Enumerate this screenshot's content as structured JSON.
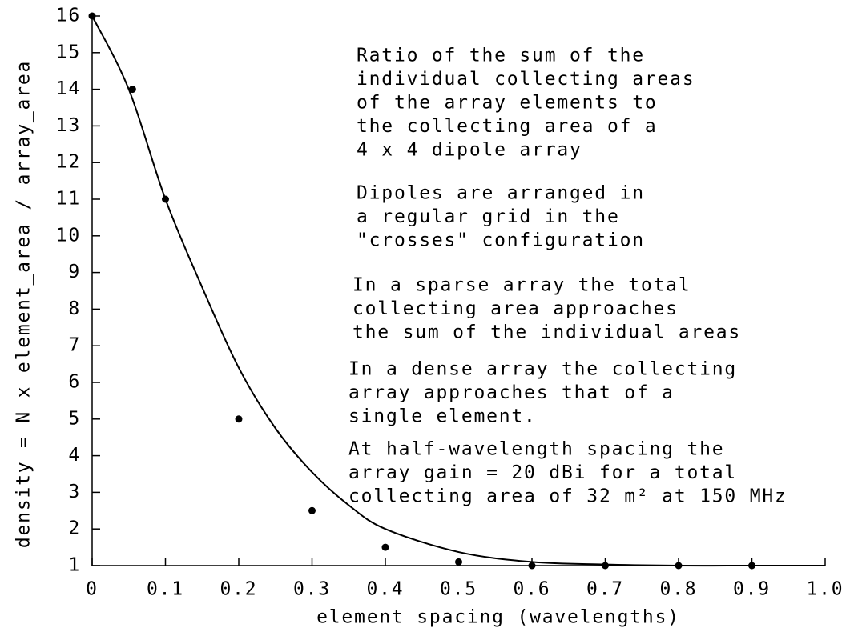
{
  "chart_data": {
    "type": "scatter",
    "x_label": "element spacing (wavelengths)",
    "y_label": "density = N x element_area / array_area",
    "x": [
      0,
      0.055,
      0.1,
      0.2,
      0.3,
      0.4,
      0.5,
      0.6,
      0.7,
      0.8,
      0.9
    ],
    "values": [
      16,
      14,
      11,
      5,
      2.5,
      1.5,
      1.1,
      1.0,
      1.0,
      1.0,
      1.0
    ],
    "color": "#000000",
    "curve": {
      "x": [
        0,
        0.05,
        0.1,
        0.15,
        0.2,
        0.25,
        0.3,
        0.35,
        0.4,
        0.5,
        0.6,
        0.7,
        0.8,
        0.9,
        1.0
      ],
      "values": [
        16,
        14,
        11,
        8.6,
        6.4,
        4.75,
        3.55,
        2.65,
        2.0,
        1.37,
        1.1,
        1.03,
        1.0,
        1.0,
        1.0
      ]
    },
    "xlim": [
      0,
      1
    ],
    "ylim": [
      1,
      16
    ],
    "xticks": [
      0,
      0.1,
      0.2,
      0.3,
      0.4,
      0.5,
      0.6,
      0.7,
      0.8,
      0.9,
      {
        "value": 1,
        "label": "1.0"
      }
    ],
    "yticks": [
      1,
      2,
      3,
      4,
      5,
      6,
      7,
      8,
      9,
      10,
      11,
      12,
      13,
      14,
      15,
      16
    ],
    "annotations": [
      [
        "Ratio of the sum of the",
        "individual collecting areas",
        "of the array elements to",
        "the collecting area of a",
        "4 x 4 dipole array"
      ],
      [
        "Dipoles are arranged in",
        "a regular grid in the",
        "\"crosses\" configuration"
      ],
      [
        "In a sparse array the total",
        "collecting area approaches",
        "the sum of the individual areas"
      ],
      [
        "In a dense array the collecting",
        "array approaches that of a",
        "single element."
      ],
      [
        "At half-wavelength spacing the",
        "array gain = 20 dBi for a total",
        "collecting area of 32 m² at 150 MHz"
      ]
    ]
  }
}
